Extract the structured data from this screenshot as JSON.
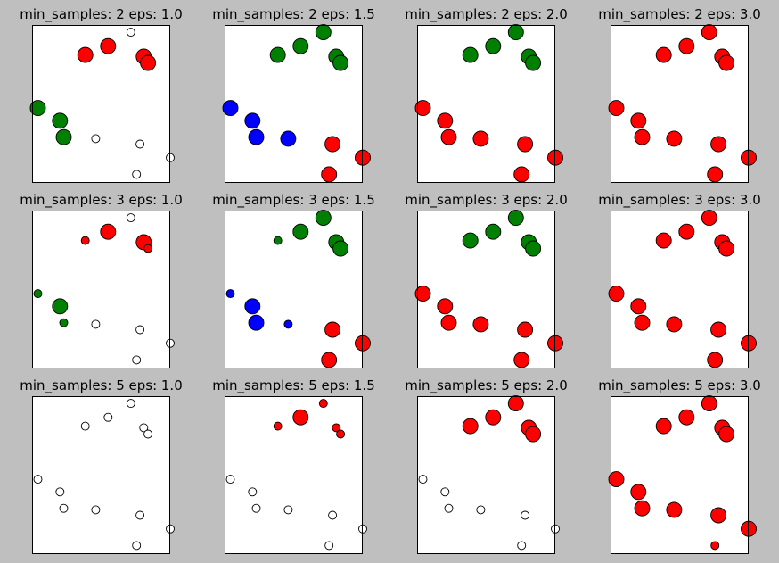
{
  "figure": {
    "background": "#bfbfbf"
  },
  "colors": {
    "outlier": "#ffffff",
    "red": "#ff0000",
    "green": "#008000",
    "blue": "#0000ff",
    "edge": "#000000"
  },
  "points": [
    {
      "x": 3.43,
      "y": 4.77
    },
    {
      "x": 2.64,
      "y": 4.33
    },
    {
      "x": 1.85,
      "y": 4.05
    },
    {
      "x": 3.88,
      "y": 4.0
    },
    {
      "x": 4.03,
      "y": 3.8
    },
    {
      "x": 0.2,
      "y": 2.37
    },
    {
      "x": 0.97,
      "y": 1.97
    },
    {
      "x": 1.1,
      "y": 1.45
    },
    {
      "x": 2.21,
      "y": 1.4
    },
    {
      "x": 3.75,
      "y": 1.23
    },
    {
      "x": 4.8,
      "y": 0.8
    },
    {
      "x": 3.63,
      "y": 0.27
    }
  ],
  "chart_data": [
    {
      "type": "scatter",
      "title": "min_samples: 2 eps: 1.0",
      "labels": [
        "outlier",
        "red",
        "red",
        "red",
        "red",
        "green",
        "green",
        "green",
        "outlier",
        "outlier",
        "outlier",
        "outlier"
      ],
      "core": [
        false,
        true,
        true,
        true,
        true,
        true,
        true,
        true,
        false,
        false,
        false,
        false
      ]
    },
    {
      "type": "scatter",
      "title": "min_samples: 2 eps: 1.5",
      "labels": [
        "green",
        "green",
        "green",
        "green",
        "green",
        "blue",
        "blue",
        "blue",
        "blue",
        "red",
        "red",
        "red"
      ],
      "core": [
        true,
        true,
        true,
        true,
        true,
        true,
        true,
        true,
        true,
        true,
        true,
        true
      ]
    },
    {
      "type": "scatter",
      "title": "min_samples: 2 eps: 2.0",
      "labels": [
        "green",
        "green",
        "green",
        "green",
        "green",
        "red",
        "red",
        "red",
        "red",
        "red",
        "red",
        "red"
      ],
      "core": [
        true,
        true,
        true,
        true,
        true,
        true,
        true,
        true,
        true,
        true,
        true,
        true
      ]
    },
    {
      "type": "scatter",
      "title": "min_samples: 2 eps: 3.0",
      "labels": [
        "red",
        "red",
        "red",
        "red",
        "red",
        "red",
        "red",
        "red",
        "red",
        "red",
        "red",
        "red"
      ],
      "core": [
        true,
        true,
        true,
        true,
        true,
        true,
        true,
        true,
        true,
        true,
        true,
        true
      ]
    },
    {
      "type": "scatter",
      "title": "min_samples: 3 eps: 1.0",
      "labels": [
        "outlier",
        "red",
        "red",
        "red",
        "red",
        "green",
        "green",
        "green",
        "outlier",
        "outlier",
        "outlier",
        "outlier"
      ],
      "core": [
        false,
        true,
        false,
        true,
        false,
        false,
        true,
        false,
        false,
        false,
        false,
        false
      ]
    },
    {
      "type": "scatter",
      "title": "min_samples: 3 eps: 1.5",
      "labels": [
        "green",
        "green",
        "green",
        "green",
        "green",
        "blue",
        "blue",
        "blue",
        "blue",
        "red",
        "red",
        "red"
      ],
      "core": [
        true,
        true,
        false,
        true,
        true,
        false,
        true,
        true,
        false,
        true,
        true,
        true
      ]
    },
    {
      "type": "scatter",
      "title": "min_samples: 3 eps: 2.0",
      "labels": [
        "green",
        "green",
        "green",
        "green",
        "green",
        "red",
        "red",
        "red",
        "red",
        "red",
        "red",
        "red"
      ],
      "core": [
        true,
        true,
        true,
        true,
        true,
        true,
        true,
        true,
        true,
        true,
        true,
        true
      ]
    },
    {
      "type": "scatter",
      "title": "min_samples: 3 eps: 3.0",
      "labels": [
        "red",
        "red",
        "red",
        "red",
        "red",
        "red",
        "red",
        "red",
        "red",
        "red",
        "red",
        "red"
      ],
      "core": [
        true,
        true,
        true,
        true,
        true,
        true,
        true,
        true,
        true,
        true,
        true,
        true
      ]
    },
    {
      "type": "scatter",
      "title": "min_samples: 5 eps: 1.0",
      "labels": [
        "outlier",
        "outlier",
        "outlier",
        "outlier",
        "outlier",
        "outlier",
        "outlier",
        "outlier",
        "outlier",
        "outlier",
        "outlier",
        "outlier"
      ],
      "core": [
        false,
        false,
        false,
        false,
        false,
        false,
        false,
        false,
        false,
        false,
        false,
        false
      ]
    },
    {
      "type": "scatter",
      "title": "min_samples: 5 eps: 1.5",
      "labels": [
        "red",
        "red",
        "red",
        "red",
        "red",
        "outlier",
        "outlier",
        "outlier",
        "outlier",
        "outlier",
        "outlier",
        "outlier"
      ],
      "core": [
        false,
        true,
        false,
        false,
        false,
        false,
        false,
        false,
        false,
        false,
        false,
        false
      ]
    },
    {
      "type": "scatter",
      "title": "min_samples: 5 eps: 2.0",
      "labels": [
        "red",
        "red",
        "red",
        "red",
        "red",
        "outlier",
        "outlier",
        "outlier",
        "outlier",
        "outlier",
        "outlier",
        "outlier"
      ],
      "core": [
        true,
        true,
        true,
        true,
        true,
        false,
        false,
        false,
        false,
        false,
        false,
        false
      ]
    },
    {
      "type": "scatter",
      "title": "min_samples: 5 eps: 3.0",
      "labels": [
        "red",
        "red",
        "red",
        "red",
        "red",
        "red",
        "red",
        "red",
        "red",
        "red",
        "red",
        "red"
      ],
      "core": [
        true,
        true,
        true,
        true,
        true,
        true,
        true,
        true,
        true,
        true,
        true,
        false
      ]
    }
  ]
}
